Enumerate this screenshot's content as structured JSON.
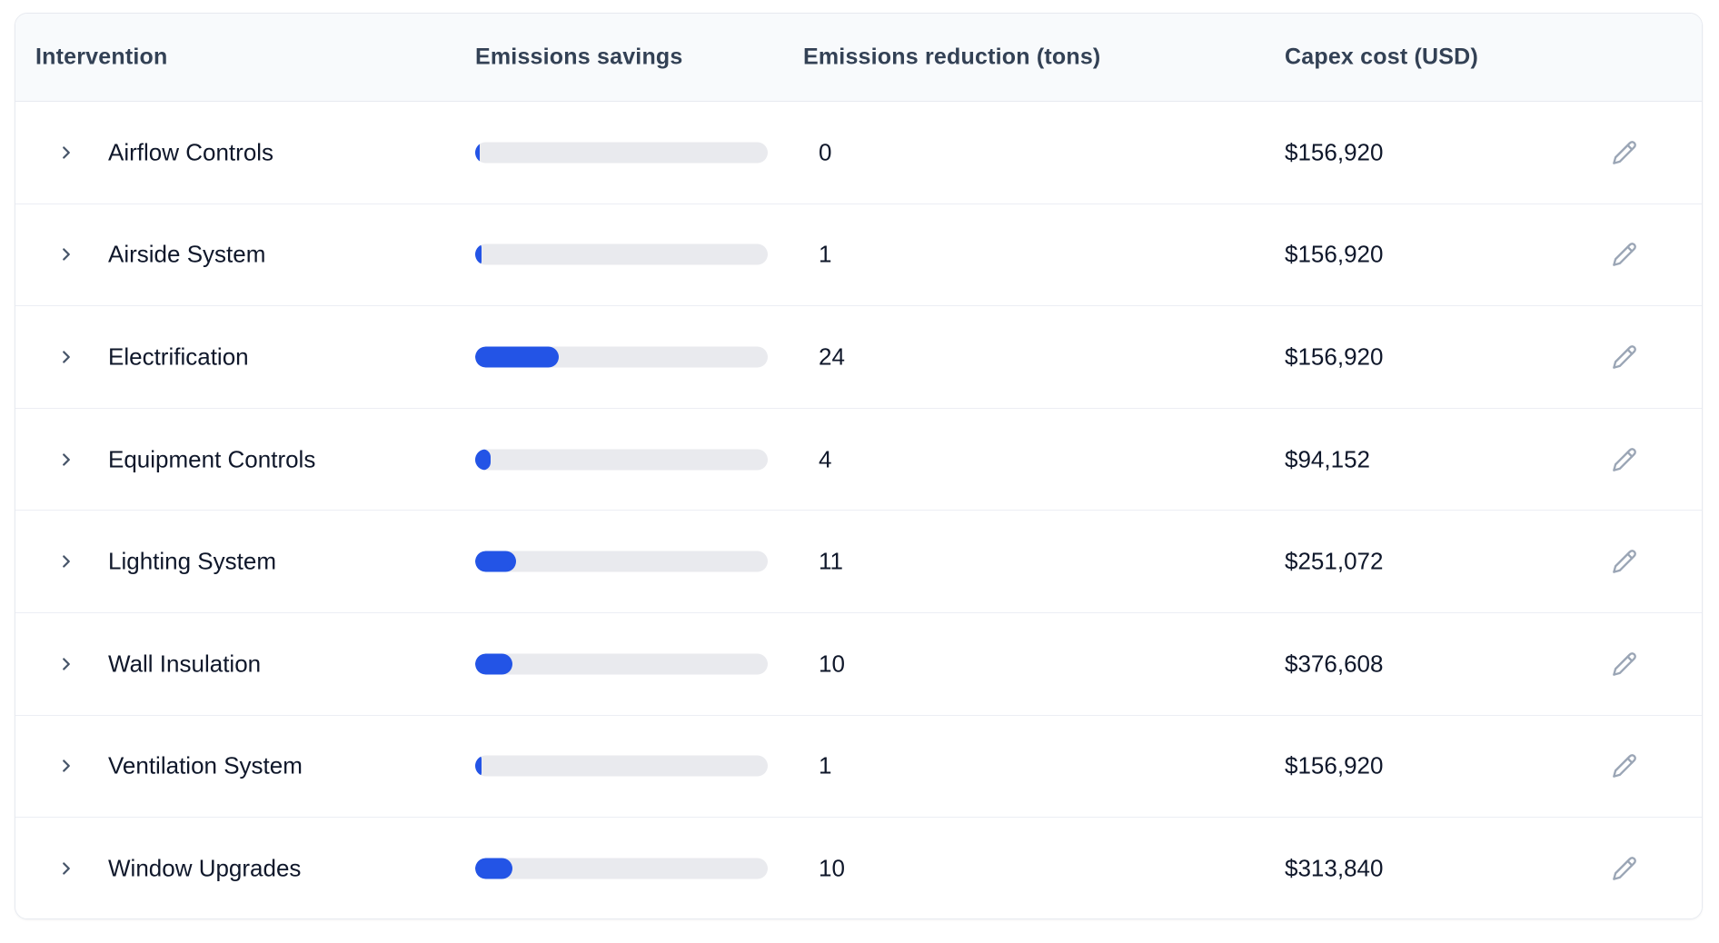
{
  "table": {
    "columns": [
      {
        "label": "Intervention"
      },
      {
        "label": "Emissions savings"
      },
      {
        "label": "Emissions reduction (tons)"
      },
      {
        "label": "Capex cost (USD)"
      }
    ],
    "rows": [
      {
        "name": "Airflow Controls",
        "reduction": "0",
        "capex": "$156,920",
        "bar_percent": 1.5
      },
      {
        "name": "Airside System",
        "reduction": "1",
        "capex": "$156,920",
        "bar_percent": 2.2
      },
      {
        "name": "Electrification",
        "reduction": "24",
        "capex": "$156,920",
        "bar_percent": 28.6
      },
      {
        "name": "Equipment Controls",
        "reduction": "4",
        "capex": "$94,152",
        "bar_percent": 5.3
      },
      {
        "name": "Lighting System",
        "reduction": "11",
        "capex": "$251,072",
        "bar_percent": 14.0
      },
      {
        "name": "Wall Insulation",
        "reduction": "10",
        "capex": "$376,608",
        "bar_percent": 12.7
      },
      {
        "name": "Ventilation System",
        "reduction": "1",
        "capex": "$156,920",
        "bar_percent": 2.2
      },
      {
        "name": "Window Upgrades",
        "reduction": "10",
        "capex": "$313,840",
        "bar_percent": 12.7
      }
    ]
  },
  "icons": {
    "expand": "chevron-right-icon",
    "edit": "pencil-icon"
  },
  "colors": {
    "accent_blue": "#2354e6",
    "bar_track": "#e9eaee",
    "header_bg": "#f8fafc",
    "card_border": "#e7eaf0",
    "row_divider": "#eceef4",
    "header_text": "#334155",
    "body_text": "#0f172a",
    "chevron": "#475569",
    "pencil": "#9aa5b5"
  }
}
